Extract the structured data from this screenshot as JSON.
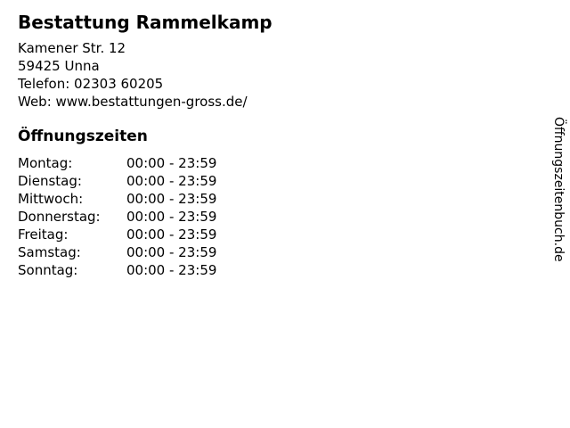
{
  "colors": {
    "background": "#ffffff",
    "text": "#000000"
  },
  "business": {
    "name": "Bestattung Rammelkamp",
    "address_line1": "Kamener Str. 12",
    "address_line2": "59425 Unna",
    "phone_line": "Telefon: 02303 60205",
    "web_line": "Web: www.bestattungen-gross.de/"
  },
  "hours": {
    "heading": "Öffnungszeiten",
    "rows": [
      {
        "day": "Montag:",
        "time": "00:00 - 23:59"
      },
      {
        "day": "Dienstag:",
        "time": "00:00 - 23:59"
      },
      {
        "day": "Mittwoch:",
        "time": "00:00 - 23:59"
      },
      {
        "day": "Donnerstag:",
        "time": "00:00 - 23:59"
      },
      {
        "day": "Freitag:",
        "time": "00:00 - 23:59"
      },
      {
        "day": "Samstag:",
        "time": "00:00 - 23:59"
      },
      {
        "day": "Sonntag:",
        "time": "00:00 - 23:59"
      }
    ]
  },
  "branding": {
    "site": "Öffnungszeitenbuch.de"
  }
}
